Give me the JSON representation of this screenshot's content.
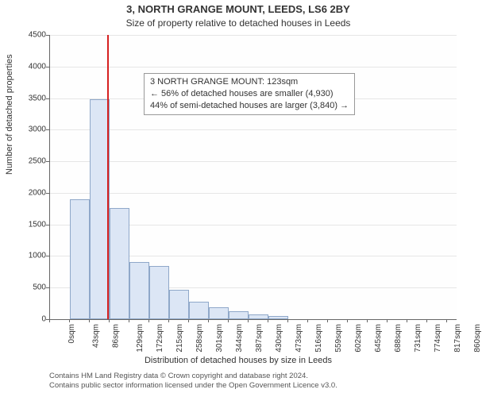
{
  "title_main": "3, NORTH GRANGE MOUNT, LEEDS, LS6 2BY",
  "title_sub": "Size of property relative to detached houses in Leeds",
  "y_axis_label": "Number of detached properties",
  "x_axis_label": "Distribution of detached houses by size in Leeds",
  "footer_line1": "Contains HM Land Registry data © Crown copyright and database right 2024.",
  "footer_line2": "Contains public sector information licensed under the Open Government Licence v3.0.",
  "annotation": {
    "line1": "3 NORTH GRANGE MOUNT: 123sqm",
    "line2": "← 56% of detached houses are smaller (4,930)",
    "line3": "44% of semi-detached houses are larger (3,840) →"
  },
  "chart": {
    "type": "histogram",
    "ylim": [
      0,
      4500
    ],
    "ytick_step": 500,
    "yticks": [
      0,
      500,
      1000,
      1500,
      2000,
      2500,
      3000,
      3500,
      4000,
      4500
    ],
    "x_tick_positions": [
      0,
      43,
      86,
      129,
      172,
      215,
      258,
      301,
      344,
      387,
      430,
      473,
      516,
      559,
      602,
      645,
      688,
      731,
      774,
      817,
      860
    ],
    "x_tick_labels": [
      "0sqm",
      "43sqm",
      "86sqm",
      "129sqm",
      "172sqm",
      "215sqm",
      "258sqm",
      "301sqm",
      "344sqm",
      "387sqm",
      "430sqm",
      "473sqm",
      "516sqm",
      "559sqm",
      "602sqm",
      "645sqm",
      "688sqm",
      "731sqm",
      "774sqm",
      "817sqm",
      "860sqm"
    ],
    "xlim": [
      0,
      880
    ],
    "bin_width": 43,
    "bar_values": [
      0,
      1900,
      3480,
      1760,
      900,
      840,
      460,
      280,
      190,
      130,
      80,
      50,
      0,
      0,
      0,
      0,
      0,
      0,
      0,
      0
    ],
    "bar_fill": "#dce6f5",
    "bar_stroke": "#8fa8c9",
    "grid_color": "#e6e6e6",
    "background_color": "#ffffff",
    "axis_color": "#666666",
    "marker_value": 123,
    "marker_color": "#d62020",
    "title_fontsize": 13,
    "label_fontsize": 11,
    "tick_fontsize": 10
  }
}
